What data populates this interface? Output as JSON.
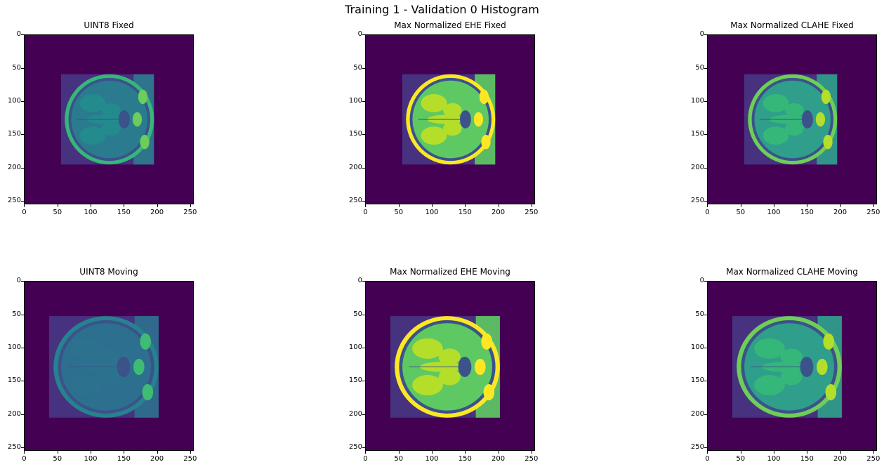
{
  "figure": {
    "title": "Training 1 - Validation 0 Histogram",
    "tick_values": [
      "0",
      "50",
      "100",
      "150",
      "200",
      "250"
    ],
    "colormap": {
      "background": "#440154",
      "mid": "#21918c",
      "high": "#fde725",
      "dark": "#3b528b"
    }
  },
  "panels": [
    {
      "id": "uint8-fixed",
      "title": "UINT8 Fixed",
      "style": "plain",
      "brain": {
        "x0": 56,
        "x1": 196,
        "y0": 60,
        "y1": 196
      }
    },
    {
      "id": "ehe-fixed",
      "title": "Max Normalized EHE Fixed",
      "style": "ehe",
      "brain": {
        "x0": 56,
        "x1": 196,
        "y0": 60,
        "y1": 196
      }
    },
    {
      "id": "clahe-fixed",
      "title": "Max Normalized CLAHE Fixed",
      "style": "clahe",
      "brain": {
        "x0": 56,
        "x1": 196,
        "y0": 60,
        "y1": 196
      }
    },
    {
      "id": "uint8-moving",
      "title": "UINT8 Moving",
      "style": "plain-dim",
      "brain": {
        "x0": 38,
        "x1": 203,
        "y0": 53,
        "y1": 206
      }
    },
    {
      "id": "ehe-moving",
      "title": "Max Normalized EHE Moving",
      "style": "ehe",
      "brain": {
        "x0": 38,
        "x1": 203,
        "y0": 53,
        "y1": 206
      }
    },
    {
      "id": "clahe-moving",
      "title": "Max Normalized CLAHE Moving",
      "style": "clahe",
      "brain": {
        "x0": 38,
        "x1": 203,
        "y0": 53,
        "y1": 206
      }
    }
  ]
}
